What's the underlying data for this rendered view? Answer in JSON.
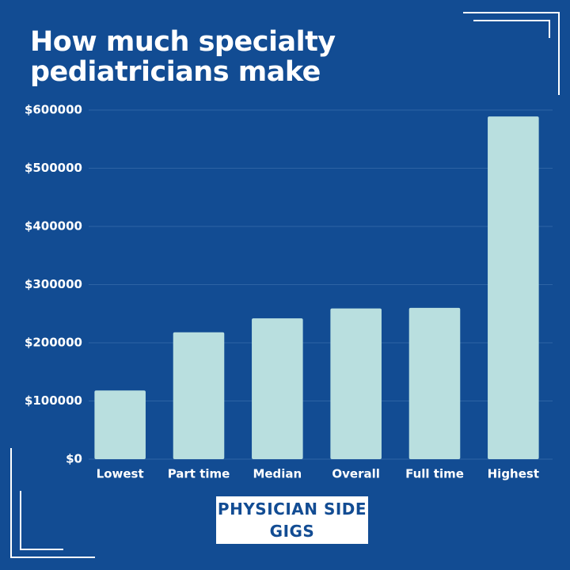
{
  "chart_data": {
    "type": "bar",
    "title": "How much specialty pediatricians make",
    "categories": [
      "Lowest",
      "Part time",
      "Median",
      "Overall",
      "Full time",
      "Highest"
    ],
    "values": [
      118000,
      218000,
      242000,
      259000,
      260000,
      589000
    ],
    "color": "#b9dfdf",
    "ylim": [
      0,
      600000
    ],
    "yticks": [
      {
        "value": 0,
        "label": "$0"
      },
      {
        "value": 100000,
        "label": "$100000"
      },
      {
        "value": 200000,
        "label": "$200000"
      },
      {
        "value": 300000,
        "label": "$300000"
      },
      {
        "value": 400000,
        "label": "$400000"
      },
      {
        "value": 500000,
        "label": "$500000"
      },
      {
        "value": 600000,
        "label": "$600000"
      }
    ],
    "grid": true,
    "logo": "PHYSICIAN SIDE GIGS"
  }
}
